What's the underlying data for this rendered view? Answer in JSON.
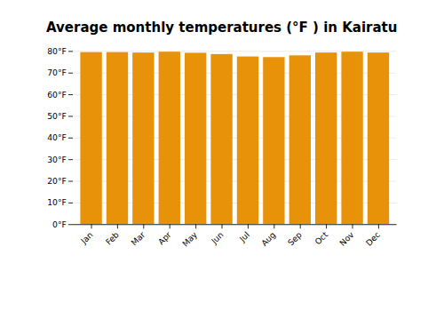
{
  "chart_data": {
    "type": "bar",
    "title": "Average monthly temperatures (°F ) in Kairatu",
    "categories": [
      "Jan",
      "Feb",
      "Mar",
      "Apr",
      "May",
      "Jun",
      "Jul",
      "Aug",
      "Sep",
      "Oct",
      "Nov",
      "Dec"
    ],
    "values": [
      79.5,
      79.5,
      79.3,
      79.7,
      79.2,
      78.6,
      77.5,
      77.2,
      78.0,
      79.3,
      79.7,
      79.3
    ],
    "color": "#E8920A",
    "ylim": [
      0,
      80
    ],
    "yticks": [
      {
        "value": 0,
        "label": "0°F"
      },
      {
        "value": 10,
        "label": "10°F"
      },
      {
        "value": 20,
        "label": "20°F"
      },
      {
        "value": 30,
        "label": "30°F"
      },
      {
        "value": 40,
        "label": "40°F"
      },
      {
        "value": 50,
        "label": "50°F"
      },
      {
        "value": 60,
        "label": "60°F"
      },
      {
        "value": 70,
        "label": "70°F"
      },
      {
        "value": 80,
        "label": "80°F"
      }
    ],
    "grid": true
  }
}
